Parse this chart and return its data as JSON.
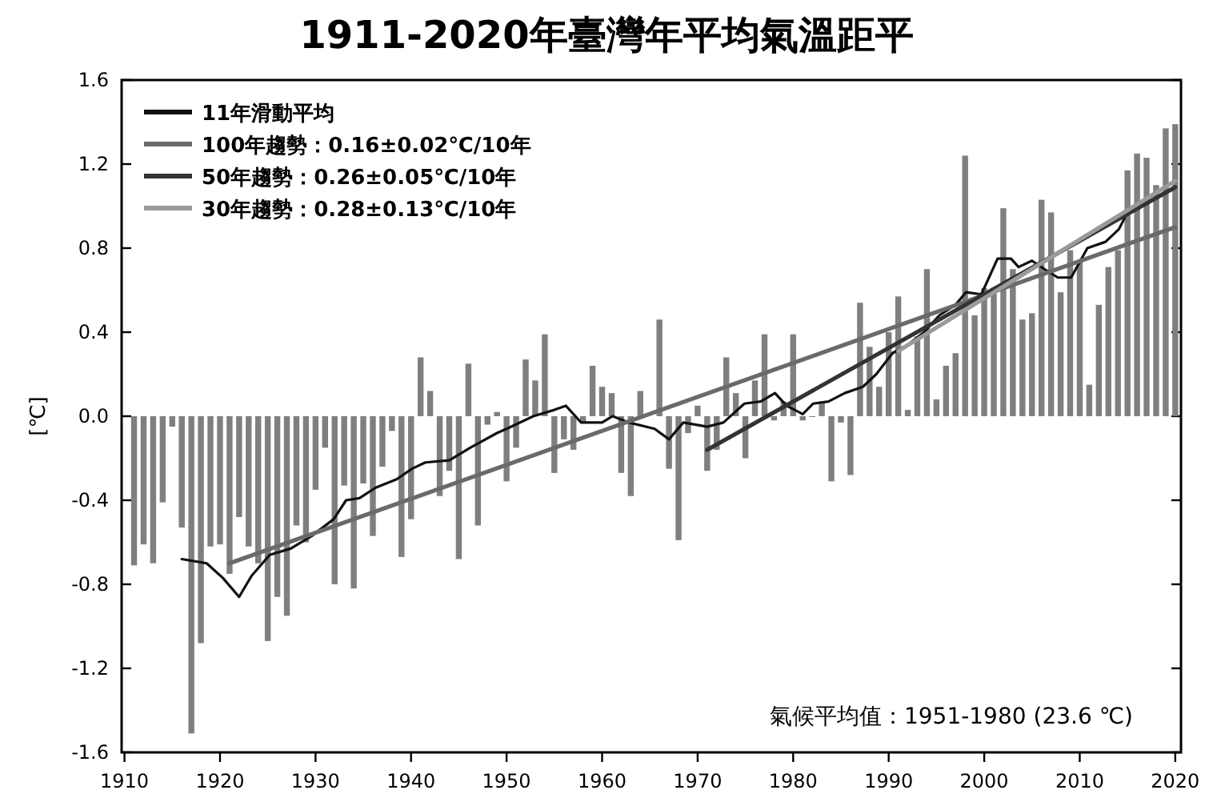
{
  "chart_data": {
    "type": "bar",
    "title": "1911-2020年臺灣年平均氣溫距平",
    "ylabel": "[℃]",
    "annotations": [
      "氣候平均值：1951-1980 (23.6 ℃)"
    ],
    "xlim": [
      1909.7,
      2020.6
    ],
    "xticks": [
      1910,
      1920,
      1930,
      1940,
      1950,
      1960,
      1970,
      1980,
      1990,
      2000,
      2010,
      2020
    ],
    "ylim": [
      -1.6,
      1.6
    ],
    "yticks": [
      -1.6,
      -1.2,
      -0.8,
      -0.4,
      {
        "value": 0,
        "label": "0.0"
      },
      0.4,
      0.8,
      1.2,
      1.6
    ],
    "grid": false,
    "legend": "top left",
    "series": [
      {
        "color": "#7f7f7f",
        "x": [
          1911,
          1912,
          1913,
          1914,
          1915,
          1916,
          1917,
          1918,
          1919,
          1920,
          1921,
          1922,
          1923,
          1924,
          1925,
          1926,
          1927,
          1928,
          1929,
          1930,
          1931,
          1932,
          1933,
          1934,
          1935,
          1936,
          1937,
          1938,
          1939,
          1940,
          1941,
          1942,
          1943,
          1944,
          1945,
          1946,
          1947,
          1948,
          1949,
          1950,
          1951,
          1952,
          1953,
          1954,
          1955,
          1956,
          1957,
          1958,
          1959,
          1960,
          1961,
          1962,
          1963,
          1964,
          1965,
          1966,
          1967,
          1968,
          1969,
          1970,
          1971,
          1972,
          1973,
          1974,
          1975,
          1976,
          1977,
          1978,
          1979,
          1980,
          1981,
          1982,
          1983,
          1984,
          1985,
          1986,
          1987,
          1988,
          1989,
          1990,
          1991,
          1992,
          1993,
          1994,
          1995,
          1996,
          1997,
          1998,
          1999,
          2000,
          2001,
          2002,
          2003,
          2004,
          2005,
          2006,
          2007,
          2008,
          2009,
          2010,
          2011,
          2012,
          2013,
          2014,
          2015,
          2016,
          2017,
          2018,
          2019,
          2020
        ],
        "values": [
          -0.71,
          -0.61,
          -0.7,
          -0.41,
          -0.05,
          -0.53,
          -1.51,
          -1.08,
          -0.62,
          -0.61,
          -0.75,
          -0.48,
          -0.62,
          -0.7,
          -1.07,
          -0.86,
          -0.95,
          -0.52,
          -0.6,
          -0.35,
          -0.15,
          -0.8,
          -0.33,
          -0.82,
          -0.32,
          -0.57,
          -0.24,
          -0.07,
          -0.67,
          -0.49,
          0.28,
          0.12,
          -0.38,
          -0.26,
          -0.68,
          0.25,
          -0.52,
          -0.04,
          0.02,
          -0.31,
          -0.15,
          0.27,
          0.17,
          0.39,
          -0.27,
          -0.11,
          -0.16,
          -0.03,
          0.24,
          0.14,
          0.11,
          -0.27,
          -0.38,
          0.12,
          null,
          0.46,
          -0.25,
          -0.59,
          -0.08,
          0.05,
          -0.26,
          -0.16,
          0.28,
          0.11,
          -0.2,
          0.17,
          0.39,
          -0.02,
          0.07,
          0.39,
          -0.02,
          0.0,
          0.07,
          -0.31,
          -0.03,
          -0.28,
          0.54,
          0.33,
          0.14,
          0.4,
          0.57,
          0.03,
          0.38,
          0.7,
          0.08,
          0.24,
          0.3,
          1.24,
          0.48,
          0.61,
          0.61,
          0.99,
          0.7,
          0.46,
          0.49,
          1.03,
          0.97,
          0.59,
          0.79,
          0.74,
          0.15,
          0.53,
          0.71,
          0.79,
          1.17,
          1.25,
          1.23,
          1.1,
          1.37,
          1.39
        ]
      },
      {
        "type": "line",
        "name": "11年滑動平均",
        "color": "#111111",
        "x": [
          1916,
          1918.6,
          1920.3,
          1922,
          1923.3,
          1925.2,
          1927.4,
          1929.6,
          1931.9,
          1933.2,
          1934.6,
          1936.3,
          1938.5,
          1940.1,
          1941.5,
          1944,
          1946.2,
          1949,
          1950,
          1952.8,
          1955,
          1956.2,
          1957.8,
          1960,
          1961.1,
          1962.8,
          1965.5,
          1967,
          1968.5,
          1971,
          1972.7,
          1974.9,
          1976.6,
          1978.1,
          1979.3,
          1981,
          1982.1,
          1983.7,
          1985.4,
          1987.3,
          1988.7,
          1990.4,
          1992,
          1993.7,
          1995.3,
          1997,
          1998.1,
          1999.7,
          2001.4,
          2002.8,
          2003.6,
          2005,
          2006.3,
          2007.7,
          2009.1,
          2010.8,
          2012.7,
          2014.1,
          2015
        ],
        "values": [
          -0.68,
          -0.7,
          -0.77,
          -0.86,
          -0.76,
          -0.66,
          -0.63,
          -0.57,
          -0.49,
          -0.4,
          -0.39,
          -0.34,
          -0.3,
          -0.25,
          -0.22,
          -0.21,
          -0.15,
          -0.08,
          -0.06,
          0.0,
          0.03,
          0.05,
          -0.03,
          -0.03,
          0.0,
          -0.03,
          -0.06,
          -0.11,
          -0.03,
          -0.05,
          -0.03,
          0.06,
          0.07,
          0.11,
          0.05,
          0.01,
          0.06,
          0.07,
          0.11,
          0.14,
          0.2,
          0.3,
          0.34,
          0.4,
          0.48,
          0.53,
          0.59,
          0.58,
          0.75,
          0.75,
          0.71,
          0.74,
          0.7,
          0.66,
          0.66,
          0.8,
          0.83,
          0.89,
          0.97
        ]
      },
      {
        "type": "line",
        "name": "100年趨勢：0.16±0.02℃/10年",
        "color": "#6a6a6a",
        "x": [
          1921,
          2020
        ],
        "values": [
          -0.7,
          0.9
        ]
      },
      {
        "type": "line",
        "name": "50年趨勢：0.26±0.05℃/10年",
        "color": "#333333",
        "x": [
          1971,
          2020
        ],
        "values": [
          -0.16,
          1.09
        ]
      },
      {
        "type": "line",
        "name": "30年趨勢：0.28±0.13℃/10年",
        "color": "#9a9a9a",
        "x": [
          1991,
          2020
        ],
        "values": [
          0.31,
          1.12
        ]
      }
    ]
  }
}
